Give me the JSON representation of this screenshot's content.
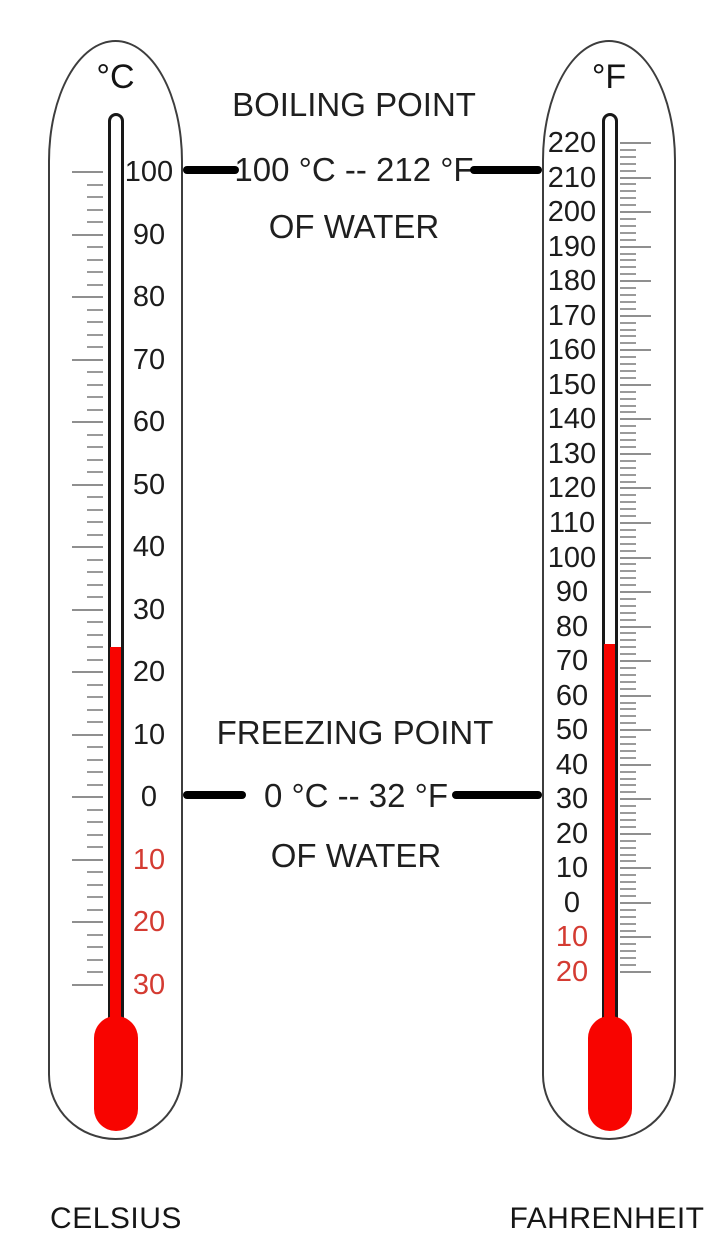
{
  "colors": {
    "mercury_red": "#f80400",
    "negative_label_red": "#d43b32",
    "tick_gray": "#9a9a9a",
    "major_tick_gray": "#8f8f8f",
    "scale_label_black": "#1c1c1c",
    "connector_black": "#000000",
    "body_outline": "#3d3d3d",
    "tube_outline": "#181818"
  },
  "boiling": {
    "title": "BOILING POINT",
    "value": "100 °C -- 212 °F",
    "subtitle": "OF WATER",
    "celsius_value": 100,
    "fahrenheit_value": 212
  },
  "freezing": {
    "title": "FREEZING POINT",
    "value": "0 °C -- 32 °F",
    "subtitle": "OF WATER",
    "celsius_value": 0,
    "fahrenheit_value": 32
  },
  "thermometers": [
    {
      "id": "celsius",
      "unit": "°C",
      "caption": "CELSIUS",
      "scale_min": -30,
      "scale_max": 100,
      "major_step": 10,
      "minor_step": 2,
      "mercury_value": 24,
      "negative_labels": "red, shown as absolute value",
      "major_labels": [
        100,
        90,
        80,
        70,
        60,
        50,
        40,
        30,
        20,
        10,
        0,
        -10,
        -20,
        -30
      ]
    },
    {
      "id": "fahrenheit",
      "unit": "°F",
      "caption": "FAHRENHEIT",
      "scale_min": -20,
      "scale_max": 220,
      "major_step": 10,
      "minor_step": 2,
      "mercury_value": 75,
      "negative_labels": "red, shown as absolute value",
      "major_labels": [
        220,
        210,
        200,
        190,
        180,
        170,
        160,
        150,
        140,
        130,
        120,
        110,
        100,
        90,
        80,
        70,
        60,
        50,
        40,
        30,
        20,
        10,
        0,
        -10,
        -20
      ]
    }
  ]
}
